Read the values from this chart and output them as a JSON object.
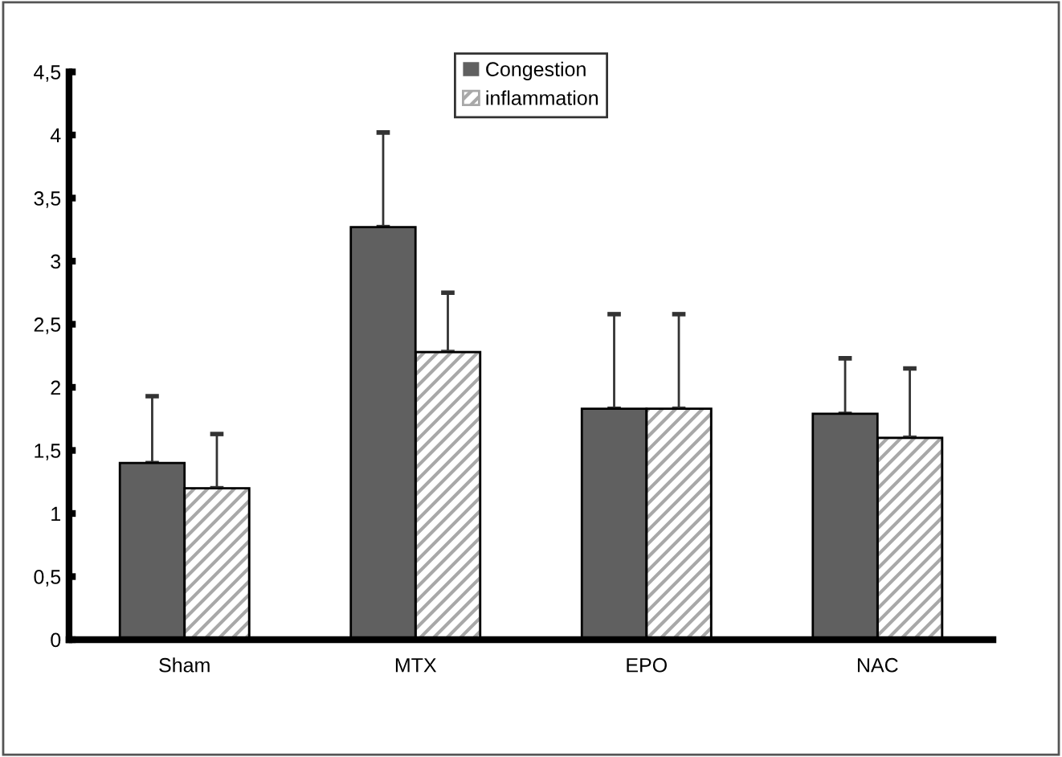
{
  "chart_data": {
    "type": "bar",
    "categories": [
      "Sham",
      "MTX",
      "EPO",
      "NAC"
    ],
    "series": [
      {
        "name": "Congestion",
        "color": "#606060",
        "values": [
          1.4,
          3.27,
          1.83,
          1.79
        ],
        "errors": [
          0.53,
          0.75,
          0.75,
          0.44
        ]
      },
      {
        "name": "inflammation",
        "color": "#a8a8a8",
        "values": [
          1.2,
          2.28,
          1.83,
          1.6
        ],
        "errors": [
          0.43,
          0.47,
          0.75,
          0.55
        ]
      }
    ],
    "ylim": [
      0,
      4.5
    ],
    "yticks": [
      0,
      {
        "value": 0.5,
        "label": "0,5"
      },
      1,
      {
        "value": 1.5,
        "label": "1,5"
      },
      2,
      {
        "value": 2.5,
        "label": "2,5"
      },
      3,
      {
        "value": 3.5,
        "label": "3,5"
      },
      4,
      {
        "value": 4.5,
        "label": "4,5"
      }
    ],
    "grid": false,
    "legend": "top"
  }
}
